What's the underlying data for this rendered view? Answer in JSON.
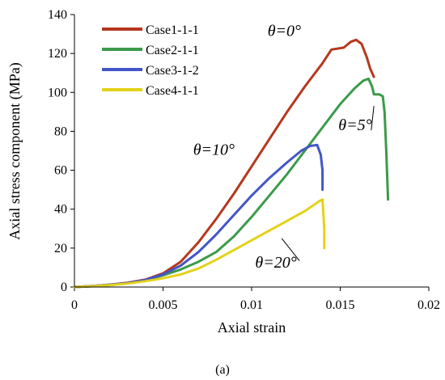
{
  "chart_data": {
    "type": "line",
    "title": "",
    "xlabel": "Axial strain",
    "ylabel": "Axial stress component (MPa)",
    "xlim": [
      0,
      0.02
    ],
    "ylim": [
      0,
      140
    ],
    "x_ticks": [
      0,
      0.005,
      0.01,
      0.015,
      0.02
    ],
    "x_tick_labels": [
      "0",
      "0.005",
      "0.01",
      "0.015",
      "0.02"
    ],
    "y_ticks": [
      0,
      20,
      40,
      60,
      80,
      100,
      120,
      140
    ],
    "y_tick_labels": [
      "0",
      "20",
      "40",
      "60",
      "80",
      "100",
      "120",
      "140"
    ],
    "grid": false,
    "legend_position": "top-left",
    "series": [
      {
        "name": "Case1-1-1",
        "color": "#b5381e",
        "points": [
          [
            0,
            0
          ],
          [
            0.001,
            0.5
          ],
          [
            0.002,
            1.2
          ],
          [
            0.003,
            2.2
          ],
          [
            0.004,
            3.8
          ],
          [
            0.005,
            7
          ],
          [
            0.006,
            13
          ],
          [
            0.007,
            23
          ],
          [
            0.008,
            35
          ],
          [
            0.009,
            48
          ],
          [
            0.01,
            62
          ],
          [
            0.011,
            76
          ],
          [
            0.012,
            90
          ],
          [
            0.013,
            103
          ],
          [
            0.014,
            115
          ],
          [
            0.0145,
            122
          ],
          [
            0.0152,
            123
          ],
          [
            0.0156,
            126
          ],
          [
            0.0159,
            127
          ],
          [
            0.0162,
            125
          ],
          [
            0.0165,
            118
          ],
          [
            0.0167,
            112
          ],
          [
            0.0169,
            108
          ]
        ]
      },
      {
        "name": "Case2-1-1",
        "color": "#3b9a4a",
        "points": [
          [
            0,
            0
          ],
          [
            0.001,
            0.4
          ],
          [
            0.002,
            1
          ],
          [
            0.003,
            2
          ],
          [
            0.004,
            3.5
          ],
          [
            0.005,
            6
          ],
          [
            0.006,
            9
          ],
          [
            0.007,
            13
          ],
          [
            0.008,
            18
          ],
          [
            0.009,
            26
          ],
          [
            0.01,
            36
          ],
          [
            0.011,
            47
          ],
          [
            0.012,
            58
          ],
          [
            0.013,
            70
          ],
          [
            0.014,
            82
          ],
          [
            0.015,
            94
          ],
          [
            0.0158,
            102
          ],
          [
            0.0163,
            106
          ],
          [
            0.0166,
            107
          ],
          [
            0.0168,
            103
          ],
          [
            0.0169,
            99
          ],
          [
            0.0172,
            99
          ],
          [
            0.0174,
            98
          ],
          [
            0.0175,
            90
          ],
          [
            0.0176,
            70
          ],
          [
            0.0177,
            45
          ]
        ]
      },
      {
        "name": "Case3-1-2",
        "color": "#4356c8",
        "points": [
          [
            0,
            0
          ],
          [
            0.001,
            0.5
          ],
          [
            0.002,
            1.2
          ],
          [
            0.003,
            2
          ],
          [
            0.004,
            3.6
          ],
          [
            0.005,
            6.5
          ],
          [
            0.006,
            11
          ],
          [
            0.007,
            18
          ],
          [
            0.008,
            27
          ],
          [
            0.009,
            37
          ],
          [
            0.01,
            47
          ],
          [
            0.011,
            56
          ],
          [
            0.012,
            64
          ],
          [
            0.0128,
            70
          ],
          [
            0.0133,
            72.5
          ],
          [
            0.0137,
            73
          ],
          [
            0.0139,
            68
          ],
          [
            0.014,
            60
          ],
          [
            0.014,
            50
          ]
        ]
      },
      {
        "name": "Case4-1-1",
        "color": "#e3d21a",
        "points": [
          [
            0,
            0
          ],
          [
            0.001,
            0.4
          ],
          [
            0.002,
            1
          ],
          [
            0.003,
            1.8
          ],
          [
            0.004,
            3
          ],
          [
            0.005,
            4.5
          ],
          [
            0.006,
            6.5
          ],
          [
            0.007,
            9.5
          ],
          [
            0.008,
            14
          ],
          [
            0.009,
            19
          ],
          [
            0.01,
            24
          ],
          [
            0.011,
            29
          ],
          [
            0.012,
            34
          ],
          [
            0.013,
            39
          ],
          [
            0.0138,
            44
          ],
          [
            0.014,
            45
          ],
          [
            0.0141,
            30
          ],
          [
            0.0141,
            20
          ]
        ]
      }
    ],
    "annotations": [
      {
        "text": "θ=0°",
        "x": 0.0109,
        "y": 129
      },
      {
        "text": "θ=5°",
        "x": 0.0149,
        "y": 80.5
      },
      {
        "text": "θ=10°",
        "x": 0.0067,
        "y": 68
      },
      {
        "text": "θ=20°",
        "x": 0.0102,
        "y": 10
      }
    ]
  },
  "caption": "(a)"
}
